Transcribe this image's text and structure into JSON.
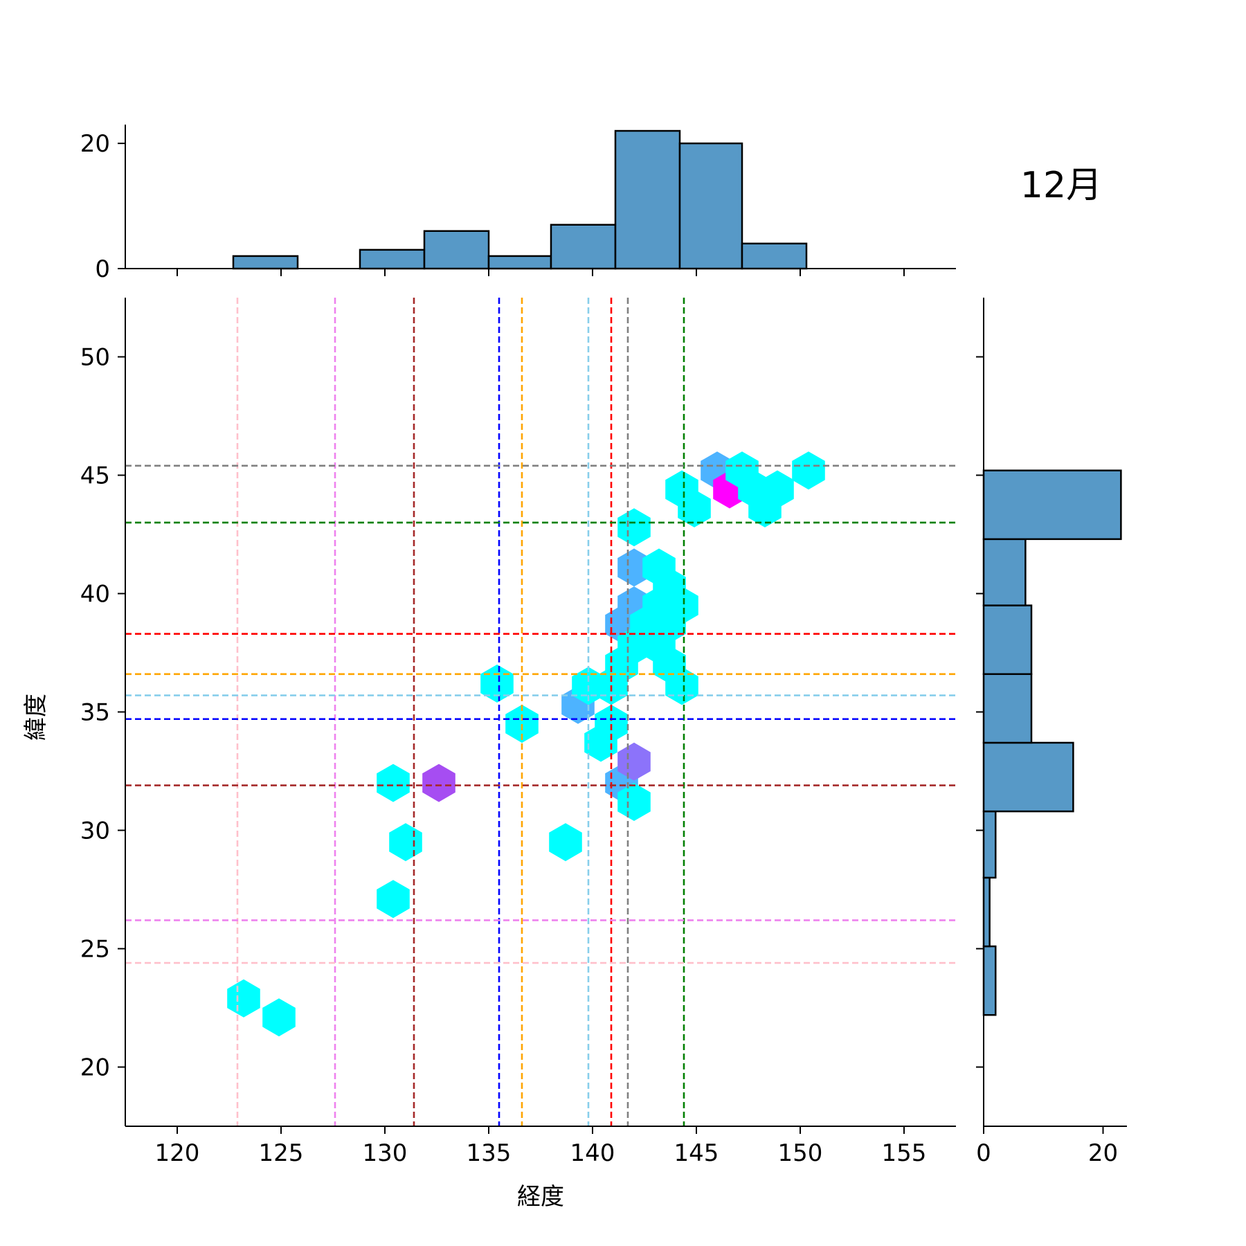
{
  "chart_data": {
    "type": "hexbin",
    "title": "12月",
    "xlabel": "経度",
    "ylabel": "緯度",
    "xlim": [
      117.5,
      157.5
    ],
    "ylim": [
      17.5,
      52.5
    ],
    "xticks": [
      120,
      125,
      130,
      135,
      140,
      145,
      150,
      155
    ],
    "yticks": [
      20,
      25,
      30,
      35,
      40,
      45,
      50
    ],
    "grid": false,
    "hexbins": [
      {
        "x": 123.2,
        "y": 22.9,
        "color": "#00ffff"
      },
      {
        "x": 124.9,
        "y": 22.1,
        "color": "#00ffff"
      },
      {
        "x": 130.4,
        "y": 27.1,
        "color": "#00ffff"
      },
      {
        "x": 131.0,
        "y": 29.5,
        "color": "#00ffff"
      },
      {
        "x": 130.4,
        "y": 32.0,
        "color": "#00ffff"
      },
      {
        "x": 132.6,
        "y": 32.0,
        "color": "#a64df2"
      },
      {
        "x": 135.4,
        "y": 36.2,
        "color": "#00ffff"
      },
      {
        "x": 136.6,
        "y": 34.5,
        "color": "#00ffff"
      },
      {
        "x": 138.7,
        "y": 29.5,
        "color": "#00ffff"
      },
      {
        "x": 139.3,
        "y": 35.3,
        "color": "#4db3ff"
      },
      {
        "x": 139.8,
        "y": 36.1,
        "color": "#00ffff"
      },
      {
        "x": 140.4,
        "y": 33.7,
        "color": "#00ffff"
      },
      {
        "x": 140.9,
        "y": 34.5,
        "color": "#00ffff"
      },
      {
        "x": 140.9,
        "y": 36.1,
        "color": "#00ffff"
      },
      {
        "x": 141.4,
        "y": 32.0,
        "color": "#4db3ff"
      },
      {
        "x": 142.0,
        "y": 32.9,
        "color": "#8c73fa"
      },
      {
        "x": 142.0,
        "y": 31.2,
        "color": "#00ffff"
      },
      {
        "x": 141.4,
        "y": 37.0,
        "color": "#00ffff"
      },
      {
        "x": 141.4,
        "y": 38.7,
        "color": "#4db3ff"
      },
      {
        "x": 142.0,
        "y": 37.8,
        "color": "#00ffff"
      },
      {
        "x": 142.0,
        "y": 39.5,
        "color": "#4db3ff"
      },
      {
        "x": 142.0,
        "y": 41.1,
        "color": "#4db3ff"
      },
      {
        "x": 142.0,
        "y": 42.8,
        "color": "#00ffff"
      },
      {
        "x": 142.6,
        "y": 38.7,
        "color": "#00ffff"
      },
      {
        "x": 143.2,
        "y": 37.8,
        "color": "#00ffff"
      },
      {
        "x": 143.2,
        "y": 39.5,
        "color": "#00ffff"
      },
      {
        "x": 143.2,
        "y": 41.1,
        "color": "#00ffff"
      },
      {
        "x": 143.7,
        "y": 37.0,
        "color": "#00ffff"
      },
      {
        "x": 143.7,
        "y": 38.7,
        "color": "#00ffff"
      },
      {
        "x": 143.7,
        "y": 40.3,
        "color": "#00ffff"
      },
      {
        "x": 144.3,
        "y": 36.1,
        "color": "#00ffff"
      },
      {
        "x": 144.3,
        "y": 39.5,
        "color": "#00ffff"
      },
      {
        "x": 144.3,
        "y": 44.4,
        "color": "#00ffff"
      },
      {
        "x": 144.9,
        "y": 43.6,
        "color": "#00ffff"
      },
      {
        "x": 146.0,
        "y": 45.2,
        "color": "#4db3ff"
      },
      {
        "x": 146.6,
        "y": 44.4,
        "color": "#ff00ff"
      },
      {
        "x": 147.2,
        "y": 45.2,
        "color": "#00ffff"
      },
      {
        "x": 147.8,
        "y": 44.4,
        "color": "#00ffff"
      },
      {
        "x": 148.3,
        "y": 43.6,
        "color": "#00ffff"
      },
      {
        "x": 148.9,
        "y": 44.4,
        "color": "#00ffff"
      },
      {
        "x": 150.4,
        "y": 45.2,
        "color": "#00ffff"
      }
    ],
    "vlines": [
      {
        "x": 122.9,
        "color": "#ffc0cb"
      },
      {
        "x": 127.6,
        "color": "#ee82ee"
      },
      {
        "x": 131.4,
        "color": "#a52a2a"
      },
      {
        "x": 135.5,
        "color": "#0000ff"
      },
      {
        "x": 136.6,
        "color": "#ffa500"
      },
      {
        "x": 139.8,
        "color": "#87ceeb"
      },
      {
        "x": 140.9,
        "color": "#ff0000"
      },
      {
        "x": 141.7,
        "color": "#808080"
      },
      {
        "x": 144.4,
        "color": "#008000"
      }
    ],
    "hlines": [
      {
        "y": 45.4,
        "color": "#808080"
      },
      {
        "y": 43.0,
        "color": "#008000"
      },
      {
        "y": 38.3,
        "color": "#ff0000"
      },
      {
        "y": 36.6,
        "color": "#ffa500"
      },
      {
        "y": 35.7,
        "color": "#87ceeb"
      },
      {
        "y": 34.7,
        "color": "#0000ff"
      },
      {
        "y": 31.9,
        "color": "#a52a2a"
      },
      {
        "y": 26.2,
        "color": "#ee82ee"
      },
      {
        "y": 24.4,
        "color": "#ffc0cb"
      }
    ],
    "x_histogram": {
      "bin_edges": [
        122.7,
        125.8,
        128.8,
        131.9,
        135.0,
        138.0,
        141.1,
        144.2,
        147.2,
        150.3
      ],
      "counts": [
        2,
        0,
        3,
        6,
        2,
        7,
        22,
        20,
        4
      ],
      "yticks": [
        0,
        20
      ],
      "ylim": [
        0,
        23
      ]
    },
    "y_histogram": {
      "bin_edges": [
        22.2,
        25.1,
        28.0,
        30.8,
        33.7,
        36.6,
        39.5,
        42.3,
        45.2
      ],
      "counts": [
        2,
        1,
        2,
        15,
        8,
        8,
        7,
        23
      ],
      "xticks": [
        0,
        20
      ],
      "xlim": [
        0,
        24
      ]
    },
    "bar_color": "#5799c7"
  }
}
